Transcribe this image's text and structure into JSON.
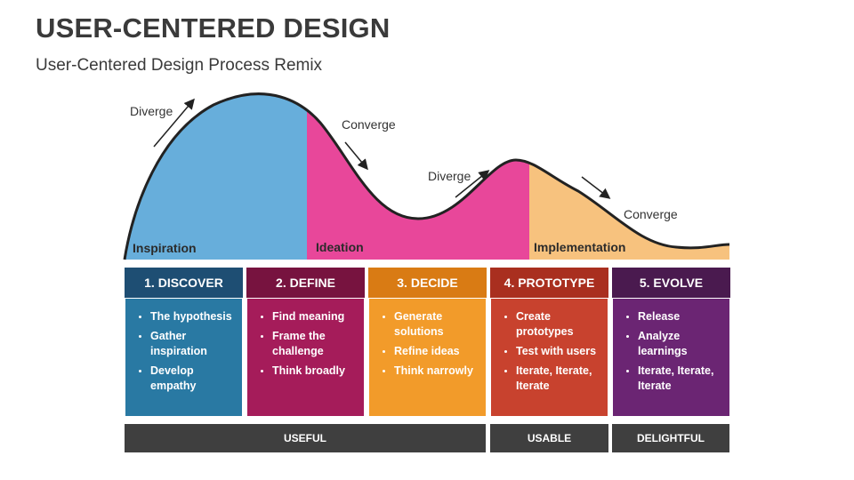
{
  "title": "USER-CENTERED DESIGN",
  "subtitle": "User-Centered Design Process Remix",
  "curve_labels": {
    "diverge_1": "Diverge",
    "converge_1": "Converge",
    "diverge_2": "Diverge",
    "converge_2": "Converge"
  },
  "phases": {
    "inspiration": "Inspiration",
    "ideation": "Ideation",
    "implementation": "Implementation"
  },
  "colors": {
    "inspiration": "#67AEDB",
    "ideation": "#E8479A",
    "implementation": "#F7C27E",
    "discover_head": "#1E4E73",
    "discover_body": "#2979A3",
    "define_head": "#77133F",
    "define_body": "#A51C5A",
    "decide_head": "#D97B14",
    "decide_body": "#F29B2A",
    "prototype_head": "#A92F1F",
    "prototype_body": "#C8422E",
    "evolve_head": "#4A1A4F",
    "evolve_body": "#6B2573",
    "bar": "#3F3F3F"
  },
  "columns": [
    {
      "heading": "1. DISCOVER",
      "items": [
        "The hypothesis",
        "Gather inspiration",
        "Develop empathy"
      ]
    },
    {
      "heading": "2. DEFINE",
      "items": [
        "Find meaning",
        "Frame the challenge",
        "Think broadly"
      ]
    },
    {
      "heading": "3. DECIDE",
      "items": [
        "Generate solutions",
        "Refine ideas",
        "Think narrowly"
      ]
    },
    {
      "heading": "4. PROTOTYPE",
      "items": [
        "Create prototypes",
        "Test with users",
        "Iterate, Iterate, Iterate"
      ]
    },
    {
      "heading": "5. EVOLVE",
      "items": [
        "Release",
        "Analyze learnings",
        "Iterate, Iterate, Iterate"
      ]
    }
  ],
  "bars": {
    "useful": "USEFUL",
    "usable": "USABLE",
    "delightful": "DELIGHTFUL"
  }
}
